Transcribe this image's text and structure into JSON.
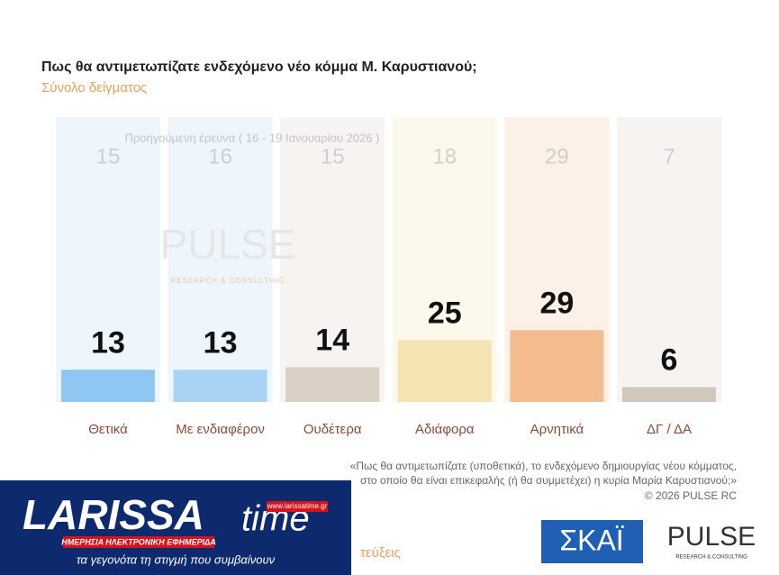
{
  "chart_data": {
    "type": "bar",
    "title": "Πως θα αντιμετωπίζατε ενδεχόμενο νέο κόμμα Μ. Καρυστιανού;",
    "subtitle": "Σύνολο δείγματος",
    "categories": [
      "Θετικά",
      "Με ενδιαφέρον",
      "Ουδέτερα",
      "Αδιάφορα",
      "Αρνητικά",
      "ΔΓ / ΔΑ"
    ],
    "series": [
      {
        "name": "Προηγούμενη έρευνα ( 16 - 19 Ιανουαρίου 2026 )",
        "values": [
          15,
          16,
          15,
          18,
          29,
          7
        ]
      },
      {
        "values": [
          13,
          13,
          14,
          25,
          29,
          6
        ],
        "colors": [
          "#8fc6f2",
          "#a9d3f4",
          "#d9cfc5",
          "#f4e3b3",
          "#f3bb8e",
          "#d2c7bc"
        ]
      }
    ],
    "column_colors": [
      "#eef6fd",
      "#eef6fd",
      "#f6f3f0",
      "#fdf8ec",
      "#fdf1e7",
      "#f6f3f0"
    ],
    "ylim": [
      0,
      115
    ],
    "watermark": [
      "PULSE",
      "RESEARCH & CONSULTING"
    ],
    "footnote": [
      "«Πως θα αντιμετωπίζατε (υποθετικά), το ενδεχόμενο δημιουργίας νέου κόμματος,",
      "στο οποίο θα είναι επικεφαλής (ή θα συμμετέχει) η κυρία Μαρία Καρυστιανού;»",
      "©  2026  PULSE RC"
    ],
    "hidden_text": "τεύξεις"
  },
  "overlay": {
    "site_name": "LARISSA",
    "site_name_2": "time",
    "url": "www.larissatime.gr",
    "tagline_1": "ΗΜΕΡΗΣΙΑ ΗΛΕΚΤΡΟΝΙΚΗ ΕΦΗΜΕΡΙΔΑ",
    "tagline_2": "τα γεγονότα τη στιγμή που συμβαίνουν",
    "broadcaster": "ΣΚΑΪ",
    "pollster": "PULSE",
    "pollster_sub": "RESEARCH & CONSULTING"
  }
}
